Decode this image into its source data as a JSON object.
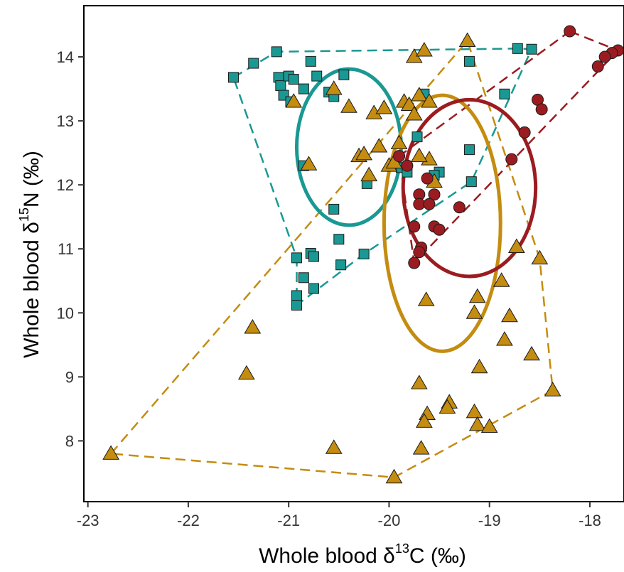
{
  "chart_data": {
    "type": "scatter",
    "title": "",
    "xlabel": {
      "prefix": "Whole blood δ",
      "sup": "13",
      "suffix": "C (‰)"
    },
    "ylabel": {
      "prefix": "Whole blood δ",
      "sup": "15",
      "suffix": "N (‰)"
    },
    "xlim": [
      -23.04,
      -17.66
    ],
    "ylim": [
      7.05,
      14.8
    ],
    "xticks": [
      -23,
      -22,
      -21,
      -20,
      -19,
      -18
    ],
    "xtick_labels": [
      "-23",
      "-22",
      "-21",
      "-20",
      "-19",
      "-18"
    ],
    "yticks": [
      8,
      9,
      10,
      11,
      12,
      13,
      14
    ],
    "ytick_labels": [
      "8",
      "9",
      "10",
      "11",
      "12",
      "13",
      "14"
    ],
    "grid": false,
    "legend": "none",
    "series": [
      {
        "marker": "square",
        "color": "#1a9893",
        "points": [
          [
            -21.55,
            13.68
          ],
          [
            -21.35,
            13.9
          ],
          [
            -21.12,
            14.08
          ],
          [
            -21.1,
            13.68
          ],
          [
            -21.08,
            13.55
          ],
          [
            -21.05,
            13.4
          ],
          [
            -21.0,
            13.7
          ],
          [
            -20.98,
            13.3
          ],
          [
            -20.95,
            13.65
          ],
          [
            -20.85,
            13.5
          ],
          [
            -20.78,
            13.93
          ],
          [
            -20.72,
            13.7
          ],
          [
            -20.6,
            13.45
          ],
          [
            -20.55,
            13.38
          ],
          [
            -20.45,
            13.72
          ],
          [
            -19.65,
            13.42
          ],
          [
            -19.2,
            13.93
          ],
          [
            -18.85,
            13.42
          ],
          [
            -18.72,
            14.13
          ],
          [
            -18.58,
            14.12
          ],
          [
            -20.85,
            12.3
          ],
          [
            -20.22,
            12.02
          ],
          [
            -19.5,
            12.2
          ],
          [
            -19.88,
            12.27
          ],
          [
            -19.82,
            12.2
          ],
          [
            -19.72,
            12.75
          ],
          [
            -19.55,
            12.15
          ],
          [
            -19.2,
            12.55
          ],
          [
            -19.18,
            12.05
          ],
          [
            -20.55,
            11.62
          ],
          [
            -20.5,
            11.15
          ],
          [
            -20.25,
            10.92
          ],
          [
            -20.48,
            10.75
          ],
          [
            -20.92,
            10.86
          ],
          [
            -20.78,
            10.93
          ],
          [
            -20.75,
            10.88
          ],
          [
            -20.85,
            10.55
          ],
          [
            -20.75,
            10.38
          ],
          [
            -20.92,
            10.27
          ],
          [
            -20.92,
            10.12
          ]
        ],
        "hull": [
          [
            -21.55,
            13.68
          ],
          [
            -21.12,
            14.08
          ],
          [
            -18.72,
            14.13
          ],
          [
            -18.58,
            14.12
          ],
          [
            -19.18,
            12.05
          ],
          [
            -20.25,
            10.92
          ],
          [
            -20.92,
            10.12
          ],
          [
            -20.92,
            10.86
          ]
        ],
        "ellipse": {
          "cx": -20.4,
          "cy": 12.59,
          "rx": 0.52,
          "ry": 1.22,
          "angle_deg": 0
        }
      },
      {
        "marker": "triangle",
        "color": "#c48c10",
        "points": [
          [
            -22.77,
            7.8
          ],
          [
            -21.42,
            9.05
          ],
          [
            -21.36,
            9.77
          ],
          [
            -20.55,
            7.89
          ],
          [
            -19.95,
            7.43
          ],
          [
            -20.95,
            13.3
          ],
          [
            -20.55,
            13.5
          ],
          [
            -20.4,
            13.22
          ],
          [
            -20.3,
            12.45
          ],
          [
            -20.25,
            12.48
          ],
          [
            -20.2,
            12.15
          ],
          [
            -20.15,
            13.12
          ],
          [
            -20.1,
            12.6
          ],
          [
            -20.05,
            13.2
          ],
          [
            -20.0,
            12.3
          ],
          [
            -19.95,
            12.35
          ],
          [
            -19.9,
            12.65
          ],
          [
            -19.85,
            13.3
          ],
          [
            -19.8,
            13.25
          ],
          [
            -19.75,
            14.0
          ],
          [
            -19.7,
            13.4
          ],
          [
            -19.65,
            14.1
          ],
          [
            -19.6,
            13.3
          ],
          [
            -19.55,
            12.05
          ],
          [
            -19.6,
            12.4
          ],
          [
            -19.7,
            12.45
          ],
          [
            -19.75,
            13.1
          ],
          [
            -19.22,
            14.25
          ],
          [
            -20.8,
            12.32
          ],
          [
            -19.63,
            10.2
          ],
          [
            -19.12,
            10.25
          ],
          [
            -19.15,
            10.0
          ],
          [
            -18.73,
            11.03
          ],
          [
            -18.5,
            10.85
          ],
          [
            -18.88,
            10.5
          ],
          [
            -18.8,
            9.95
          ],
          [
            -18.85,
            9.58
          ],
          [
            -18.58,
            9.35
          ],
          [
            -18.37,
            8.79
          ],
          [
            -19.1,
            9.15
          ],
          [
            -19.7,
            8.9
          ],
          [
            -19.4,
            8.6
          ],
          [
            -19.42,
            8.52
          ],
          [
            -19.62,
            8.42
          ],
          [
            -19.65,
            8.3
          ],
          [
            -19.15,
            8.45
          ],
          [
            -19.12,
            8.25
          ],
          [
            -19.0,
            8.22
          ],
          [
            -19.68,
            7.88
          ]
        ],
        "hull": [
          [
            -22.77,
            7.8
          ],
          [
            -19.22,
            14.25
          ],
          [
            -18.5,
            10.85
          ],
          [
            -18.37,
            8.79
          ],
          [
            -19.95,
            7.43
          ]
        ],
        "ellipse": {
          "cx": -19.47,
          "cy": 11.4,
          "rx": 0.58,
          "ry": 2.0,
          "angle_deg": 0
        }
      },
      {
        "marker": "circle",
        "color": "#9b1c20",
        "points": [
          [
            -18.2,
            14.4
          ],
          [
            -17.72,
            14.1
          ],
          [
            -17.78,
            14.06
          ],
          [
            -17.85,
            14.0
          ],
          [
            -17.92,
            13.85
          ],
          [
            -18.52,
            13.33
          ],
          [
            -18.48,
            13.18
          ],
          [
            -18.65,
            12.82
          ],
          [
            -18.78,
            12.4
          ],
          [
            -19.9,
            12.45
          ],
          [
            -19.82,
            12.3
          ],
          [
            -19.62,
            12.1
          ],
          [
            -19.55,
            11.85
          ],
          [
            -19.7,
            11.85
          ],
          [
            -19.7,
            11.7
          ],
          [
            -19.6,
            11.7
          ],
          [
            -19.3,
            11.65
          ],
          [
            -19.75,
            11.35
          ],
          [
            -19.55,
            11.35
          ],
          [
            -19.5,
            11.3
          ],
          [
            -19.68,
            11.02
          ],
          [
            -19.7,
            10.95
          ],
          [
            -19.75,
            10.78
          ]
        ],
        "hull": [
          [
            -18.2,
            14.4
          ],
          [
            -17.72,
            14.1
          ],
          [
            -19.75,
            10.78
          ],
          [
            -19.9,
            12.45
          ]
        ],
        "ellipse": {
          "cx": -19.2,
          "cy": 11.95,
          "rx": 0.66,
          "ry": 1.38,
          "angle_deg": 0
        }
      }
    ]
  }
}
